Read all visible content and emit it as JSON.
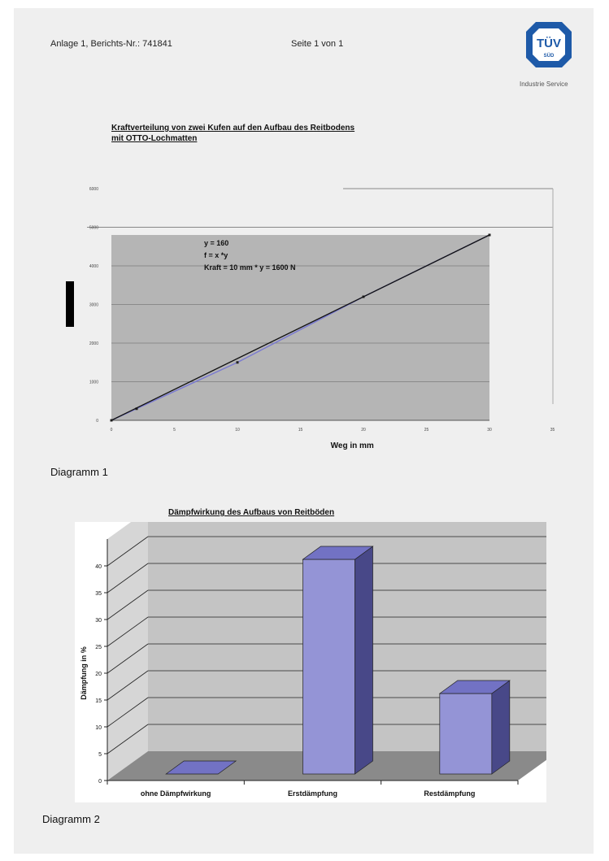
{
  "header": {
    "report": "Anlage 1, Berichts-Nr.: 741841",
    "page": "Seite 1 von 1",
    "logo_text": "TÜV",
    "logo_sub": "SÜD",
    "logo_caption": "Industrie Service"
  },
  "diagram1": {
    "caption": "Diagramm 1",
    "annotation": [
      "y = 160",
      "f = x *y",
      "Kraft = 10 mm * y = 1600 N"
    ]
  },
  "diagram2": {
    "caption": "Diagramm 2"
  },
  "chart_data": [
    {
      "type": "line",
      "title_lines": [
        "Kraftverteilung von zwei Kufen auf den Aufbau des Reitbodens",
        "mit OTTO-Lochmatten"
      ],
      "xlabel": "Weg in mm",
      "ylabel": "",
      "xlim": [
        0,
        35
      ],
      "ylim": [
        0,
        6000
      ],
      "x_ticks": [
        0,
        5,
        10,
        15,
        20,
        25,
        30,
        35
      ],
      "y_ticks": [
        0,
        1000,
        2000,
        3000,
        4000,
        5000,
        6000
      ],
      "grid": true,
      "series": [
        {
          "values_x": [
            0,
            2,
            10,
            20,
            30
          ],
          "values_y": [
            0,
            300,
            1500,
            3200,
            4800
          ],
          "color": "#7b7bd0"
        },
        {
          "values_x": [
            0,
            30
          ],
          "values_y": [
            0,
            4800
          ],
          "color": "#111111"
        }
      ]
    },
    {
      "type": "bar",
      "title": "Dämpfwirkung des Aufbaus von Reitböden",
      "categories": [
        "ohne Dämpfwirkung",
        "Erstdämpfung",
        "Restdämpfung"
      ],
      "values": [
        0,
        40,
        15
      ],
      "ylabel": "Dämpfung in %",
      "ylim": [
        0,
        40
      ],
      "y_ticks": [
        0,
        5,
        10,
        15,
        20,
        25,
        30,
        35,
        40
      ],
      "grid": true,
      "colors": {
        "bar_front": "#9494d6",
        "bar_top": "#7272c4",
        "bar_side": "#484888",
        "wall": "#c4c4c4",
        "floor": "#8a8a8a"
      }
    }
  ]
}
